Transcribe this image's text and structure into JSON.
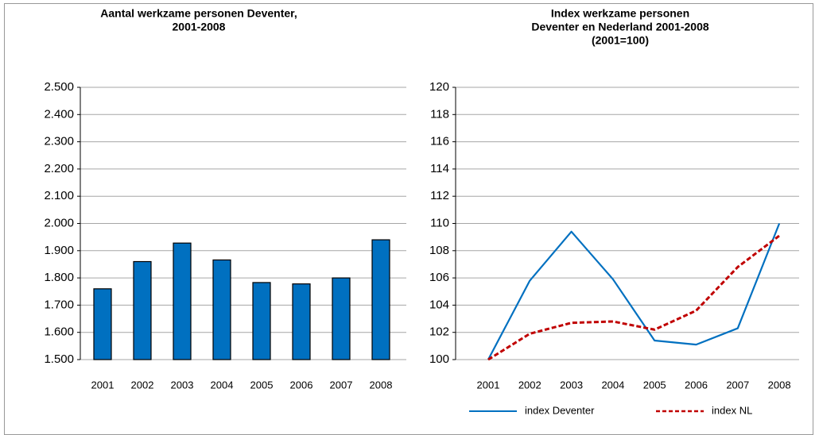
{
  "chart_data": [
    {
      "type": "bar",
      "title": [
        "Aantal werkzame personen Deventer,",
        "2001-2008"
      ],
      "categories": [
        "2001",
        "2002",
        "2003",
        "2004",
        "2005",
        "2006",
        "2007",
        "2008"
      ],
      "values": [
        1760,
        1860,
        1928,
        1866,
        1783,
        1778,
        1800,
        1940
      ],
      "color": "#0070c0",
      "ylim": [
        1500,
        2500
      ],
      "yticks": [
        {
          "value": 1500,
          "label": "1.500"
        },
        {
          "value": 1600,
          "label": "1.600"
        },
        {
          "value": 1700,
          "label": "1.700"
        },
        {
          "value": 1800,
          "label": "1.800"
        },
        {
          "value": 1900,
          "label": "1.900"
        },
        {
          "value": 2000,
          "label": "2.000"
        },
        {
          "value": 2100,
          "label": "2.100"
        },
        {
          "value": 2200,
          "label": "2.200"
        },
        {
          "value": 2300,
          "label": "2.300"
        },
        {
          "value": 2400,
          "label": "2.400"
        },
        {
          "value": 2500,
          "label": "2.500"
        }
      ],
      "grid": true
    },
    {
      "type": "line",
      "title": [
        "Index werkzame personen",
        "Deventer en Nederland 2001-2008",
        "(2001=100)"
      ],
      "categories": [
        "2001",
        "2002",
        "2003",
        "2004",
        "2005",
        "2006",
        "2007",
        "2008"
      ],
      "series": [
        {
          "name": "index Deventer",
          "color": "#0070c0",
          "dashed": false,
          "values": [
            100,
            105.8,
            109.4,
            105.9,
            101.4,
            101.1,
            102.3,
            110
          ]
        },
        {
          "name": "index NL",
          "color": "#c00000",
          "dashed": true,
          "values": [
            100,
            101.9,
            102.7,
            102.8,
            102.2,
            103.6,
            106.8,
            109.1
          ]
        }
      ],
      "ylim": [
        100,
        120
      ],
      "yticks": [
        100,
        102,
        104,
        106,
        108,
        110,
        112,
        114,
        116,
        118,
        120
      ],
      "grid": true,
      "legend": "bottom"
    }
  ]
}
